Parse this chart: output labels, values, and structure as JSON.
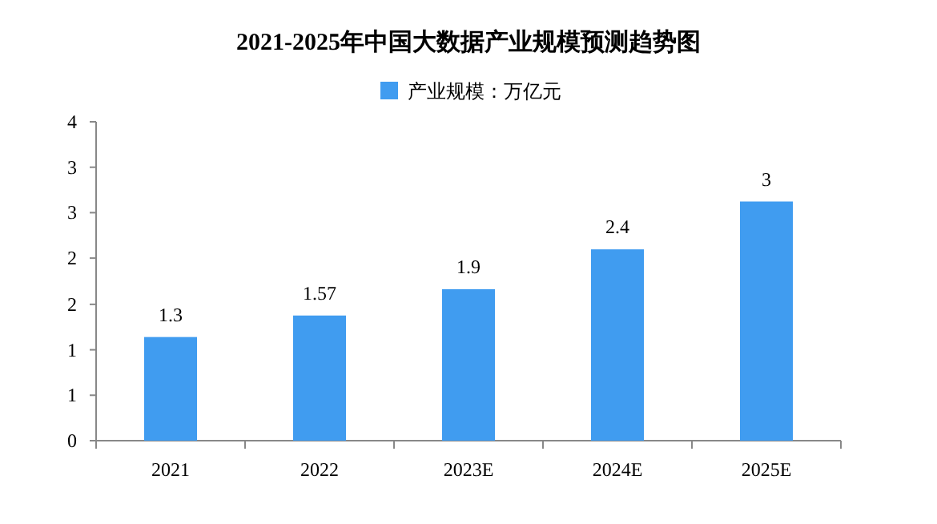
{
  "chart_data": {
    "type": "bar",
    "title": "2021-2025年中国大数据产业规模预测趋势图",
    "categories": [
      "2021",
      "2022",
      "2023E",
      "2024E",
      "2025E"
    ],
    "series": [
      {
        "name": "产业规模：万亿元",
        "color": "#409cf0",
        "values": [
          1.3,
          1.57,
          1.9,
          2.4,
          3
        ]
      }
    ],
    "ylim": [
      0,
      4
    ],
    "yticks": [
      0,
      {
        "value": 0.57,
        "label": "1"
      },
      {
        "value": 1.14,
        "label": "1"
      },
      {
        "value": 1.71,
        "label": "2"
      },
      {
        "value": 2.29,
        "label": "2"
      },
      {
        "value": 2.86,
        "label": "3"
      },
      {
        "value": 3.43,
        "label": "3"
      },
      4
    ],
    "data_labels": true,
    "grid": false,
    "legend": "top"
  }
}
